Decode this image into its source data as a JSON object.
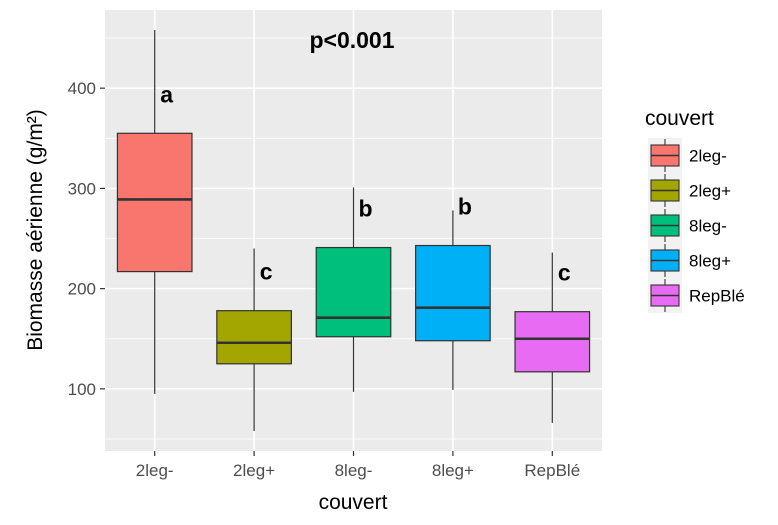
{
  "chart_data": {
    "type": "box",
    "title": "",
    "annotation": "p<0.001",
    "xlabel": "couvert",
    "ylabel": "Biomasse aérienne (g/m²)",
    "yticks": [
      100,
      200,
      300,
      400
    ],
    "ylim": [
      58,
      460
    ],
    "grid": true,
    "legend": {
      "title": "couvert",
      "position": "right"
    },
    "categories": [
      "2leg-",
      "2leg+",
      "8leg-",
      "8leg+",
      "RepBlé"
    ],
    "series": [
      {
        "name": "2leg-",
        "color": "#F8766D",
        "min": 95,
        "q1": 217,
        "median": 289,
        "q3": 355,
        "max": 458,
        "letter": "a"
      },
      {
        "name": "2leg+",
        "color": "#A3A500",
        "min": 58,
        "q1": 125,
        "median": 146,
        "q3": 178,
        "max": 240,
        "letter": "c"
      },
      {
        "name": "8leg-",
        "color": "#00BF7D",
        "min": 97,
        "q1": 152,
        "median": 171,
        "q3": 241,
        "max": 301,
        "letter": "b"
      },
      {
        "name": "8leg+",
        "color": "#00B0F6",
        "min": 99,
        "q1": 148,
        "median": 181,
        "q3": 243,
        "max": 278,
        "letter": "b"
      },
      {
        "name": "RepBlé",
        "color": "#E76BF3",
        "min": 66,
        "q1": 117,
        "median": 150,
        "q3": 177,
        "max": 236,
        "letter": "c"
      }
    ]
  }
}
